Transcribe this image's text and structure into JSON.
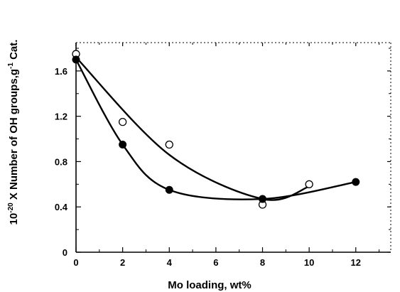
{
  "chart_data": {
    "type": "scatter",
    "xlabel": "Mo loading, wt%",
    "ylabel_prefix": "10",
    "ylabel_exponent": "-20",
    "ylabel_main": " X Number of OH groups,g",
    "ylabel_exponent2": "-1",
    "ylabel_suffix": " Cat.",
    "xlim": [
      0,
      13.5
    ],
    "ylim": [
      0,
      1.85
    ],
    "xticks": [
      "0",
      "2",
      "4",
      "6",
      "8",
      "10",
      "12"
    ],
    "yticks": [
      "0",
      "0.4",
      "0.8",
      "1.2",
      "1.6"
    ],
    "grid": false,
    "series": [
      {
        "marker": "filled-circle",
        "x": [
          0,
          2,
          4,
          8,
          12
        ],
        "y": [
          1.7,
          0.95,
          0.55,
          0.47,
          0.62
        ]
      },
      {
        "marker": "open-circle",
        "x": [
          0,
          2,
          4,
          8,
          10
        ],
        "y": [
          1.75,
          1.15,
          0.95,
          0.42,
          0.6
        ]
      }
    ]
  }
}
